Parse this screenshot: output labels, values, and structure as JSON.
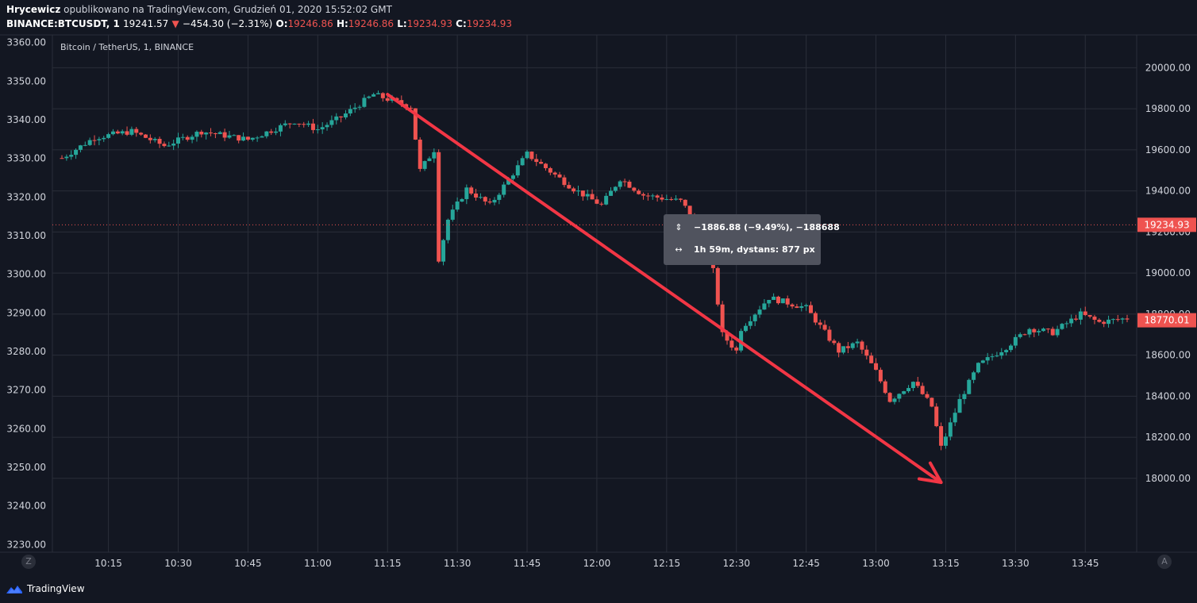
{
  "header": {
    "author": "Hrycewicz",
    "published_text": "opublikowano na TradingView.com, Grudzień 01, 2020 15:52:02 GMT",
    "symbol": "BINANCE:BTCUSDT, 1",
    "last": "19241.57",
    "change_arrow": "▼",
    "change": "−454.30 (−2.31%)",
    "o_label": "O:",
    "o_value": "19246.86",
    "h_label": "H:",
    "h_value": "19246.86",
    "l_label": "L:",
    "l_value": "19234.93",
    "c_label": "C:",
    "c_value": "19234.93"
  },
  "symbol_label": "Bitcoin / TetherUS, 1, BINANCE",
  "tooltip": {
    "line1": "−1886.88 (−9.49%), −188688",
    "line2": "1h 59m, dystans: 877 px",
    "icon1": "⇕",
    "icon2": "↔"
  },
  "corner_left": "Z",
  "corner_right": "A",
  "brand": "TradingView",
  "colors": {
    "background": "#131722",
    "grid": "#2a2e39",
    "up": "#26a69a",
    "down": "#ef5350",
    "arrow": "#f23645",
    "text": "#d1d4dc"
  },
  "chart_data": {
    "type": "candlestick",
    "title": "Bitcoin / TetherUS, 1, BINANCE",
    "x_tick_labels": [
      "10:15",
      "10:30",
      "10:45",
      "11:00",
      "11:15",
      "11:30",
      "11:45",
      "12:00",
      "12:15",
      "12:30",
      "12:45",
      "13:00",
      "13:15",
      "13:30",
      "13:45"
    ],
    "left_axis": {
      "ticks": [
        "3360.00",
        "3350.00",
        "3340.00",
        "3330.00",
        "3320.00",
        "3310.00",
        "3300.00",
        "3290.00",
        "3280.00",
        "3270.00",
        "3260.00",
        "3250.00",
        "3240.00",
        "3230.00"
      ],
      "range": [
        3228,
        3362
      ]
    },
    "right_axis": {
      "ticks": [
        "20000.00",
        "19800.00",
        "19600.00",
        "19400.00",
        "19200.00",
        "19000.00",
        "18800.00",
        "18600.00",
        "18400.00",
        "18200.00",
        "18000.00"
      ],
      "range": [
        17640,
        20160
      ]
    },
    "price_labels": [
      {
        "value": 19234.93,
        "text": "19234.93",
        "color": "#ef5350"
      },
      {
        "value": 18770.01,
        "text": "18770.01",
        "color": "#ef5350"
      }
    ],
    "time_range": [
      "10:05",
      "13:54"
    ],
    "ohlc_keypoints": [
      {
        "t": "10:05",
        "price": 19560
      },
      {
        "t": "10:12",
        "price": 19660
      },
      {
        "t": "10:20",
        "price": 19690
      },
      {
        "t": "10:27",
        "price": 19620
      },
      {
        "t": "10:35",
        "price": 19690
      },
      {
        "t": "10:45",
        "price": 19650
      },
      {
        "t": "10:55",
        "price": 19740
      },
      {
        "t": "11:00",
        "price": 19700
      },
      {
        "t": "11:05",
        "price": 19760
      },
      {
        "t": "11:12",
        "price": 19870
      },
      {
        "t": "11:20",
        "price": 19810
      },
      {
        "t": "11:22",
        "price": 19500
      },
      {
        "t": "11:25",
        "price": 19600
      },
      {
        "t": "11:26",
        "price": 19070
      },
      {
        "t": "11:28",
        "price": 19260
      },
      {
        "t": "11:32",
        "price": 19410
      },
      {
        "t": "11:37",
        "price": 19330
      },
      {
        "t": "11:45",
        "price": 19580
      },
      {
        "t": "11:55",
        "price": 19410
      },
      {
        "t": "12:01",
        "price": 19330
      },
      {
        "t": "12:05",
        "price": 19460
      },
      {
        "t": "12:10",
        "price": 19380
      },
      {
        "t": "12:18",
        "price": 19350
      },
      {
        "t": "12:21",
        "price": 19260
      },
      {
        "t": "12:25",
        "price": 19010
      },
      {
        "t": "12:27",
        "price": 18700
      },
      {
        "t": "12:30",
        "price": 18620
      },
      {
        "t": "12:31",
        "price": 18730
      },
      {
        "t": "12:37",
        "price": 18880
      },
      {
        "t": "12:45",
        "price": 18830
      },
      {
        "t": "12:52",
        "price": 18620
      },
      {
        "t": "12:56",
        "price": 18660
      },
      {
        "t": "13:00",
        "price": 18520
      },
      {
        "t": "13:03",
        "price": 18380
      },
      {
        "t": "13:08",
        "price": 18470
      },
      {
        "t": "13:12",
        "price": 18350
      },
      {
        "t": "13:14",
        "price": 18150
      },
      {
        "t": "13:18",
        "price": 18380
      },
      {
        "t": "13:22",
        "price": 18550
      },
      {
        "t": "13:28",
        "price": 18640
      },
      {
        "t": "13:33",
        "price": 18730
      },
      {
        "t": "13:38",
        "price": 18710
      },
      {
        "t": "13:44",
        "price": 18800
      },
      {
        "t": "13:48",
        "price": 18760
      },
      {
        "t": "13:54",
        "price": 18780
      }
    ],
    "annotation_arrow": {
      "from": {
        "t": "11:15",
        "price": 19870
      },
      "to": {
        "t": "13:14",
        "price": 17980
      }
    },
    "grid": true
  }
}
